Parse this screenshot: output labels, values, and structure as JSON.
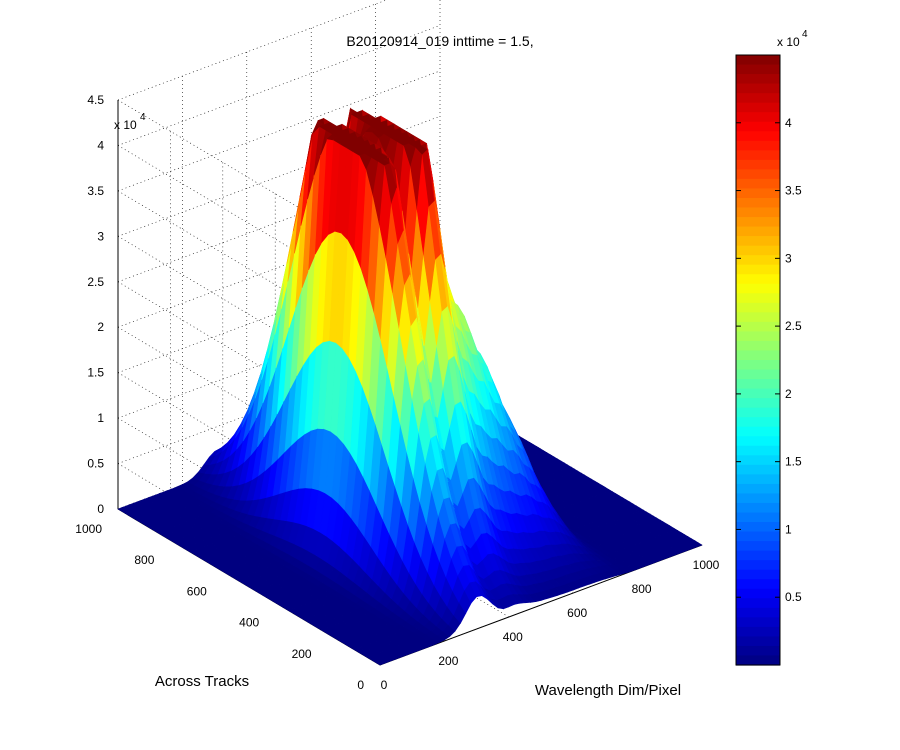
{
  "chart_data": {
    "type": "surface3d",
    "title": "B20120914_019 inttime = 1.5,",
    "xlabel": "Wavelength Dim/Pixel",
    "ylabel": "Across Tracks",
    "zlabel": "",
    "x_ticks": [
      "0",
      "200",
      "400",
      "600",
      "800",
      "1000"
    ],
    "y_ticks": [
      "0",
      "200",
      "400",
      "600",
      "800",
      "1000"
    ],
    "z_ticks": [
      "0",
      "0.5",
      "1",
      "1.5",
      "2",
      "2.5",
      "3",
      "3.5",
      "4",
      "4.5"
    ],
    "z_exponent_base": "x 10",
    "z_exponent_power": "4",
    "colorbar_ticks": [
      "0.5",
      "1",
      "1.5",
      "2",
      "2.5",
      "3",
      "3.5",
      "4"
    ],
    "colorbar_exponent_base": "x 10",
    "colorbar_exponent_power": "4",
    "xlim": [
      0,
      1000
    ],
    "ylim": [
      0,
      1000
    ],
    "zlim": [
      0,
      45000
    ],
    "colormap": "jet",
    "color_range": [
      0,
      45000
    ],
    "grid": true,
    "peaks": [
      {
        "x": 300,
        "y": 480,
        "z": 44000
      },
      {
        "x": 345,
        "y": 505,
        "z": 31000
      },
      {
        "x": 430,
        "y": 490,
        "z": 34000
      },
      {
        "x": 470,
        "y": 430,
        "z": 25000
      },
      {
        "x": 470,
        "y": 330,
        "z": 24500
      }
    ]
  }
}
